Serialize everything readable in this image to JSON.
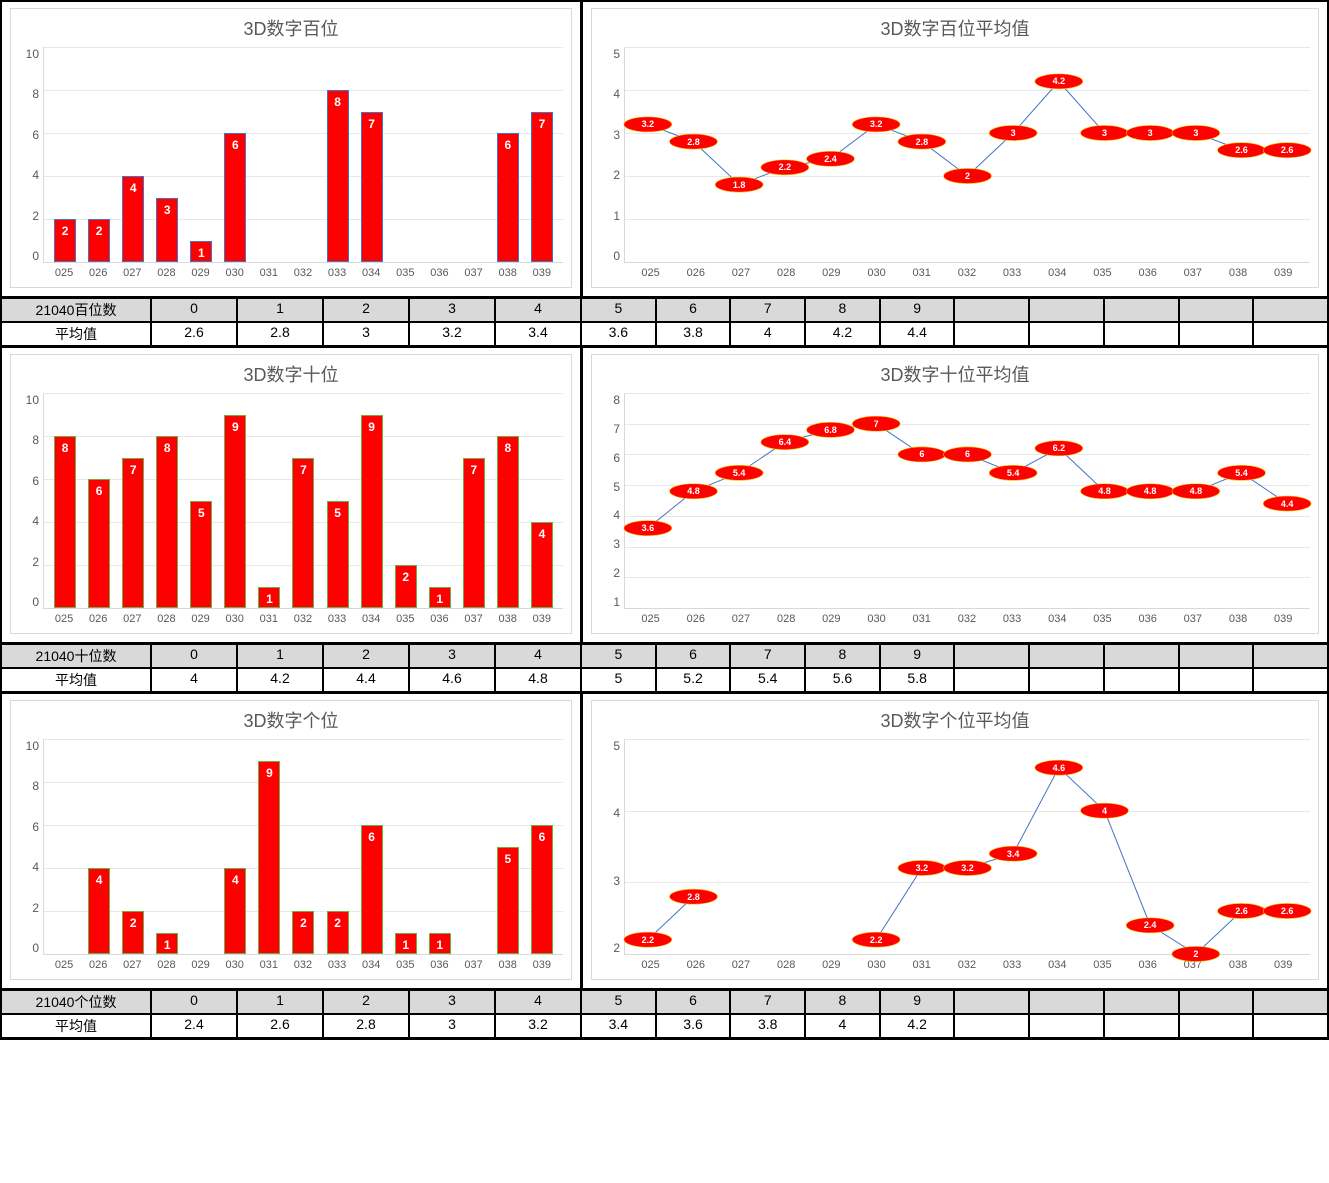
{
  "categories": [
    "025",
    "026",
    "027",
    "028",
    "029",
    "030",
    "031",
    "032",
    "033",
    "034",
    "035",
    "036",
    "037",
    "038",
    "039"
  ],
  "colors": {
    "bar_fill": "#ff0000",
    "bar_border_blue": "#4472c4",
    "bar_border_green": "#70ad47",
    "line": "#4472c4",
    "marker_fill": "#ff0000",
    "marker_border": "#ffc000",
    "grid": "#e8e8e8",
    "title": "#595959",
    "table_header_bg": "#d9d9d9"
  },
  "sections": [
    {
      "bar": {
        "title": "3D数字百位",
        "ymin": 0,
        "ymax": 10,
        "ystep": 2,
        "border_color": "#4472c4",
        "values": [
          2,
          2,
          4,
          3,
          1,
          6,
          null,
          null,
          8,
          7,
          null,
          null,
          null,
          6,
          7
        ]
      },
      "line": {
        "title": "3D数字百位平均值",
        "ymin": 0,
        "ymax": 5,
        "ystep": 1,
        "values": [
          3.2,
          2.8,
          1.8,
          2.2,
          2.4,
          3.2,
          2.8,
          2,
          3,
          4.2,
          3,
          3,
          3,
          2.6,
          2.6
        ]
      },
      "table": {
        "row1_label": "21040百位数",
        "row1_vals": [
          "0",
          "1",
          "2",
          "3",
          "4",
          "5",
          "6",
          "7",
          "8",
          "9",
          "",
          "",
          "",
          "",
          ""
        ],
        "row2_label": "平均值",
        "row2_vals": [
          "2.6",
          "2.8",
          "3",
          "3.2",
          "3.4",
          "3.6",
          "3.8",
          "4",
          "4.2",
          "4.4",
          "",
          "",
          "",
          "",
          ""
        ]
      }
    },
    {
      "bar": {
        "title": "3D数字十位",
        "ymin": 0,
        "ymax": 10,
        "ystep": 2,
        "border_color": "#70ad47",
        "values": [
          8,
          6,
          7,
          8,
          5,
          9,
          1,
          7,
          5,
          9,
          2,
          1,
          7,
          8,
          4
        ]
      },
      "line": {
        "title": "3D数字十位平均值",
        "ymin": 1,
        "ymax": 8,
        "ystep": 1,
        "values": [
          3.6,
          4.8,
          5.4,
          6.4,
          6.8,
          7,
          6,
          6,
          5.4,
          6.2,
          4.8,
          4.8,
          4.8,
          5.4,
          4.4
        ]
      },
      "table": {
        "row1_label": "21040十位数",
        "row1_vals": [
          "0",
          "1",
          "2",
          "3",
          "4",
          "5",
          "6",
          "7",
          "8",
          "9",
          "",
          "",
          "",
          "",
          ""
        ],
        "row2_label": "平均值",
        "row2_vals": [
          "4",
          "4.2",
          "4.4",
          "4.6",
          "4.8",
          "5",
          "5.2",
          "5.4",
          "5.6",
          "5.8",
          "",
          "",
          "",
          "",
          ""
        ]
      }
    },
    {
      "bar": {
        "title": "3D数字个位",
        "ymin": 0,
        "ymax": 10,
        "ystep": 2,
        "border_color": "#70ad47",
        "values": [
          null,
          4,
          2,
          1,
          null,
          4,
          9,
          2,
          2,
          6,
          1,
          1,
          null,
          5,
          6
        ]
      },
      "line": {
        "title": "3D数字个位平均值",
        "ymin": 2,
        "ymax": 5,
        "ystep": 1,
        "values": [
          2.2,
          2.8,
          null,
          null,
          null,
          2.2,
          3.2,
          3.2,
          3.4,
          4.6,
          4,
          2.4,
          2,
          2.6,
          2.6
        ]
      },
      "table": {
        "row1_label": "21040个位数",
        "row1_vals": [
          "0",
          "1",
          "2",
          "3",
          "4",
          "5",
          "6",
          "7",
          "8",
          "9",
          "",
          "",
          "",
          "",
          ""
        ],
        "row2_label": "平均值",
        "row2_vals": [
          "2.4",
          "2.6",
          "2.8",
          "3",
          "3.2",
          "3.4",
          "3.6",
          "3.8",
          "4",
          "4.2",
          "",
          "",
          "",
          "",
          ""
        ]
      }
    }
  ]
}
